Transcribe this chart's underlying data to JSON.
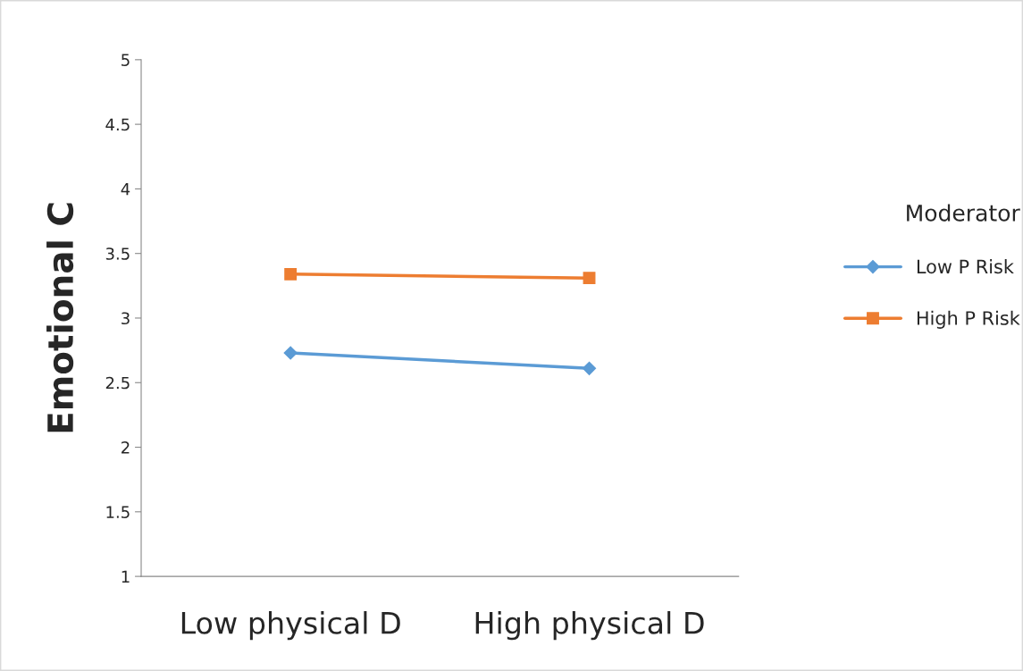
{
  "chart_data": {
    "type": "line",
    "ylabel": "Emotional C",
    "legend_title": "Moderator",
    "categories": [
      "Low physical D",
      "High physical D"
    ],
    "series": [
      {
        "name": "Low P Risk",
        "color": "#5b9bd5",
        "marker": "diamond",
        "values": [
          2.73,
          2.61
        ]
      },
      {
        "name": "High P Risk",
        "color": "#ed7d31",
        "marker": "square",
        "values": [
          3.34,
          3.31
        ]
      }
    ],
    "ylim": [
      1,
      5
    ],
    "yticks": [
      1,
      1.5,
      2,
      2.5,
      3,
      3.5,
      4,
      4.5,
      5
    ],
    "grid": false,
    "legend": "right"
  }
}
